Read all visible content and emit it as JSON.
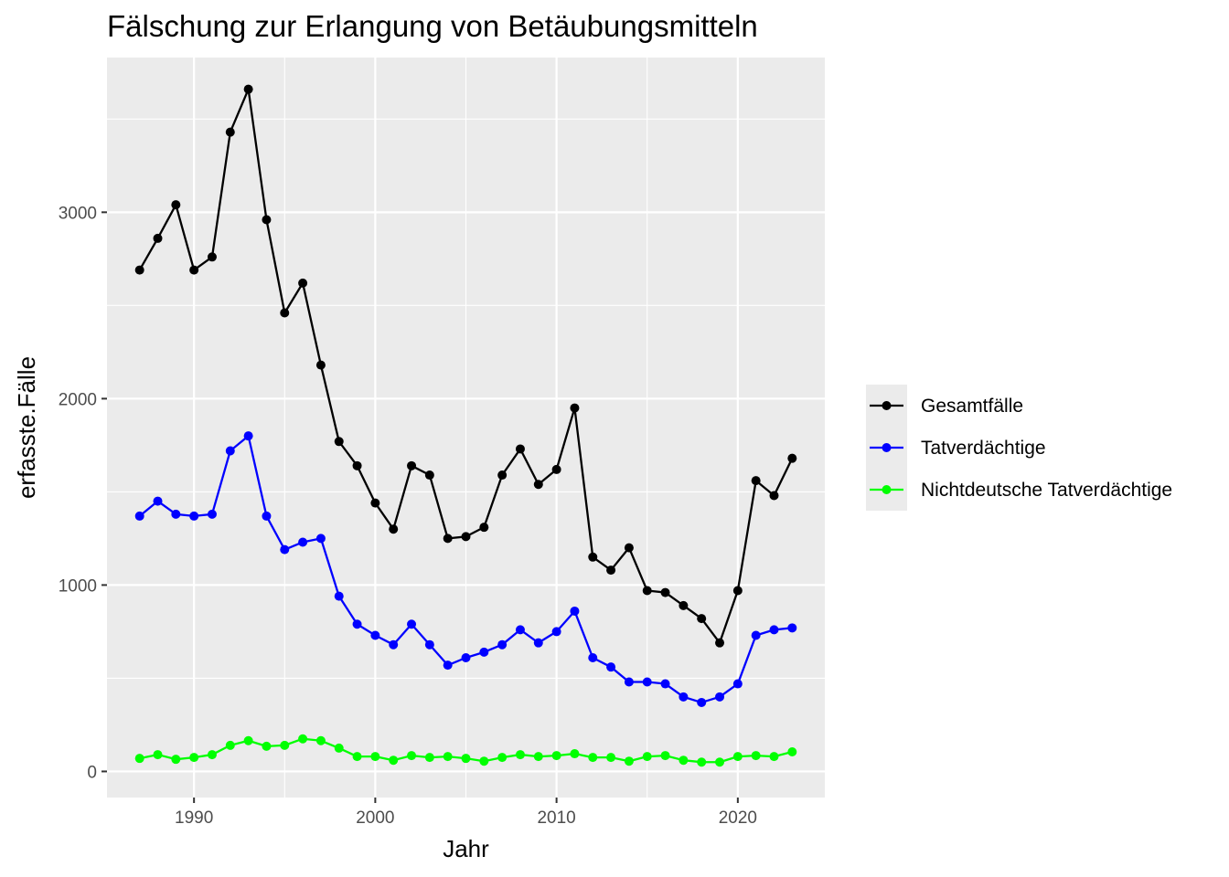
{
  "chart_data": {
    "type": "line",
    "title": "Fälschung zur Erlangung von Betäubungsmitteln",
    "xlabel": "Jahr",
    "ylabel": "erfasste.Fälle",
    "x": [
      1987,
      1988,
      1989,
      1990,
      1991,
      1992,
      1993,
      1994,
      1995,
      1996,
      1997,
      1998,
      1999,
      2000,
      2001,
      2002,
      2003,
      2004,
      2005,
      2006,
      2007,
      2008,
      2009,
      2010,
      2011,
      2012,
      2013,
      2014,
      2015,
      2016,
      2017,
      2018,
      2019,
      2020,
      2021,
      2022,
      2023
    ],
    "xticks": [
      1990,
      2000,
      2010,
      2020
    ],
    "yticks": [
      0,
      1000,
      2000,
      3000
    ],
    "xlim": [
      1985.2,
      2024.8
    ],
    "ylim": [
      -140,
      3830
    ],
    "grid": true,
    "legend_position": "right",
    "series": [
      {
        "name": "Gesamtfälle",
        "color": "#000000",
        "values": [
          2690,
          2860,
          3040,
          2690,
          2760,
          3430,
          3660,
          2960,
          2460,
          2620,
          2180,
          1770,
          1640,
          1440,
          1300,
          1640,
          1590,
          1250,
          1260,
          1310,
          1590,
          1730,
          1540,
          1620,
          1950,
          1150,
          1080,
          1200,
          970,
          960,
          890,
          820,
          690,
          970,
          1560,
          1480,
          1680
        ]
      },
      {
        "name": "Tatverdächtige",
        "color": "#0000ff",
        "values": [
          1370,
          1450,
          1380,
          1370,
          1380,
          1720,
          1800,
          1370,
          1190,
          1230,
          1250,
          940,
          790,
          730,
          680,
          790,
          680,
          570,
          610,
          640,
          680,
          760,
          690,
          750,
          860,
          610,
          560,
          480,
          480,
          470,
          400,
          370,
          400,
          470,
          730,
          760,
          770
        ]
      },
      {
        "name": "Nichtdeutsche Tatverdächtige",
        "color": "#00ff00",
        "values": [
          70,
          90,
          65,
          75,
          90,
          140,
          165,
          135,
          140,
          175,
          165,
          125,
          80,
          80,
          60,
          85,
          75,
          80,
          70,
          55,
          75,
          90,
          80,
          85,
          95,
          75,
          75,
          55,
          80,
          85,
          60,
          50,
          50,
          80,
          85,
          80,
          105
        ]
      }
    ]
  }
}
